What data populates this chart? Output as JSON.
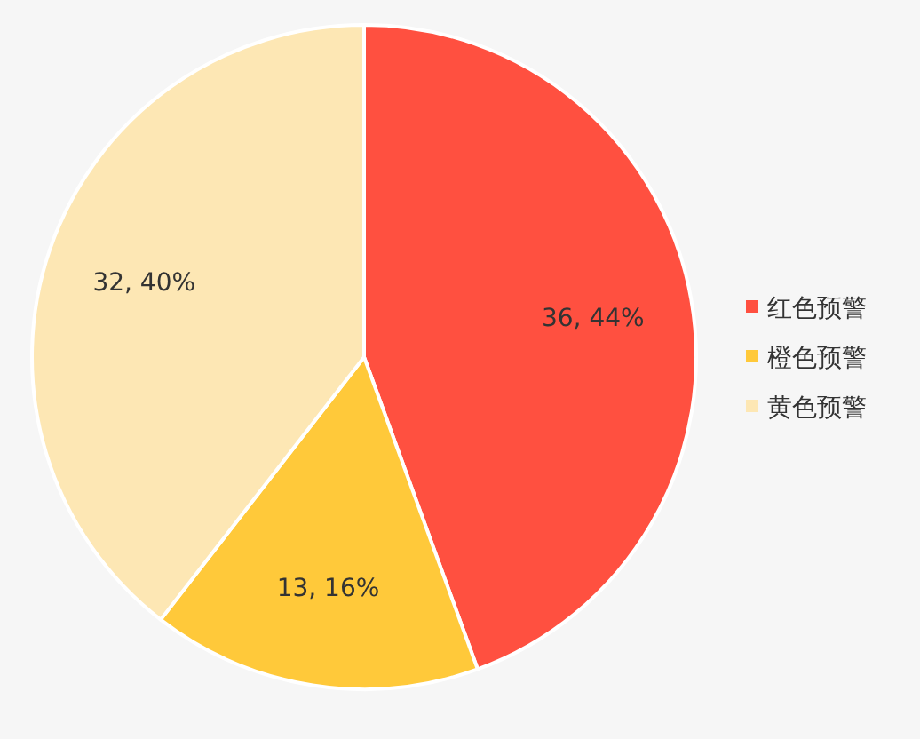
{
  "chart_data": {
    "type": "pie",
    "categories": [
      "红色预警",
      "橙色预警",
      "黄色预警"
    ],
    "values": [
      36,
      13,
      32
    ],
    "colors": [
      "#ff5040",
      "#ffc93a",
      "#fde7b4"
    ],
    "value_labels": [
      "36, 44%",
      "13, 16%",
      "32, 40%"
    ],
    "legend": "right"
  }
}
